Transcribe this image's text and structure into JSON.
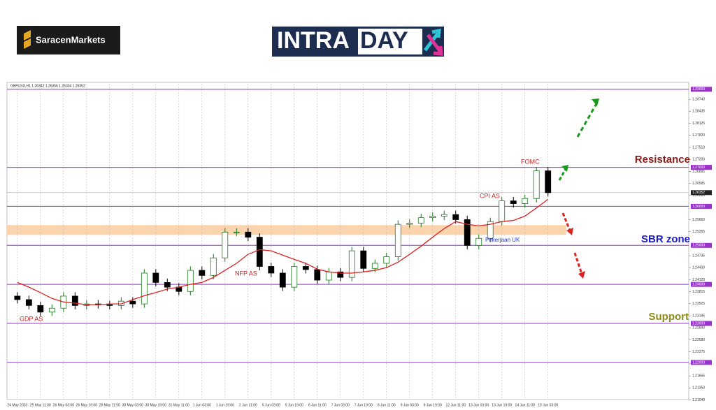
{
  "logo": "SaracenMarkets",
  "banner": {
    "intra": "INTRA",
    "day": "DAY"
  },
  "chart_data": {
    "type": "candlestick",
    "symbol_info": "GBPUSD,H1  1.26342 1.26356 1.26334 1.26352",
    "up_color": "#1a7a1a",
    "down_color": "#000000",
    "open": [
      1.237,
      1.2361,
      1.2346,
      1.2329,
      1.2339,
      1.237,
      1.2346,
      1.235,
      1.2348,
      1.2346,
      1.2357,
      1.235,
      1.2429,
      1.2405,
      1.2393,
      1.2382,
      1.2436,
      1.2423,
      1.2468,
      1.2534,
      1.2534,
      1.2521,
      1.2446,
      1.2429,
      1.2393,
      1.2446,
      1.2438,
      1.2411,
      1.2432,
      1.2418,
      1.2486,
      1.2441,
      1.2454,
      1.2471,
      1.2554,
      1.2557,
      1.2571,
      1.2575,
      1.2579,
      1.2566,
      1.25,
      1.2518,
      1.2561,
      1.2614,
      1.2607,
      1.262,
      1.2691
    ],
    "high": [
      1.238,
      1.2371,
      1.2356,
      1.2349,
      1.238,
      1.238,
      1.236,
      1.236,
      1.2358,
      1.2367,
      1.2367,
      1.2439,
      1.2439,
      1.2415,
      1.2403,
      1.2446,
      1.2446,
      1.2478,
      1.2544,
      1.2544,
      1.2544,
      1.2531,
      1.2456,
      1.2439,
      1.2456,
      1.2456,
      1.2448,
      1.2442,
      1.2442,
      1.2496,
      1.2496,
      1.2464,
      1.2481,
      1.2564,
      1.2567,
      1.2581,
      1.2585,
      1.2589,
      1.2589,
      1.2576,
      1.2528,
      1.2571,
      1.2624,
      1.2624,
      1.263,
      1.2701,
      1.2701
    ],
    "low": [
      1.2351,
      1.2336,
      1.2319,
      1.2319,
      1.2329,
      1.2336,
      1.2336,
      1.2338,
      1.2336,
      1.2336,
      1.234,
      1.234,
      1.2395,
      1.2383,
      1.2372,
      1.2372,
      1.2413,
      1.2413,
      1.2458,
      1.2524,
      1.2511,
      1.2436,
      1.2419,
      1.2383,
      1.2383,
      1.2428,
      1.2401,
      1.2401,
      1.2408,
      1.2408,
      1.2431,
      1.2431,
      1.2444,
      1.2461,
      1.2544,
      1.2547,
      1.2561,
      1.2565,
      1.2556,
      1.249,
      1.249,
      1.2508,
      1.2551,
      1.2597,
      1.2597,
      1.261,
      1.2625
    ],
    "close": [
      1.2361,
      1.2346,
      1.2329,
      1.2339,
      1.237,
      1.2346,
      1.235,
      1.2348,
      1.2346,
      1.2357,
      1.235,
      1.2429,
      1.2405,
      1.2393,
      1.2382,
      1.2436,
      1.2423,
      1.2468,
      1.2534,
      1.2534,
      1.2521,
      1.2446,
      1.2429,
      1.2393,
      1.2446,
      1.2438,
      1.2411,
      1.2432,
      1.2418,
      1.2486,
      1.2441,
      1.2454,
      1.2471,
      1.2554,
      1.2557,
      1.2571,
      1.2575,
      1.2579,
      1.2566,
      1.25,
      1.2518,
      1.2561,
      1.2614,
      1.2607,
      1.262,
      1.2691,
      1.2635
    ],
    "moving_average": {
      "color": "#dd2222",
      "values": [
        1.2405,
        1.2393,
        1.2379,
        1.2364,
        1.2355,
        1.2352,
        1.2348,
        1.2348,
        1.235,
        1.235,
        1.2361,
        1.2371,
        1.2379,
        1.2388,
        1.2393,
        1.24,
        1.2405,
        1.2418,
        1.2436,
        1.2454,
        1.2477,
        1.2489,
        1.2486,
        1.2475,
        1.2464,
        1.2454,
        1.2439,
        1.2432,
        1.2429,
        1.2429,
        1.2432,
        1.2436,
        1.2443,
        1.2457,
        1.2477,
        1.2498,
        1.2521,
        1.2543,
        1.2561,
        1.2554,
        1.255,
        1.2554,
        1.2561,
        1.2564,
        1.2575,
        1.2596,
        1.2618
      ]
    },
    "xlim": [
      -0.9,
      58.2
    ],
    "xticks": [
      {
        "value": 0,
        "label": "24 May 2023"
      },
      {
        "value": 2,
        "label": "25 May 11:00"
      },
      {
        "value": 4,
        "label": "26 May 03:00"
      },
      {
        "value": 6,
        "label": "26 May 19:00"
      },
      {
        "value": 8,
        "label": "29 May 11:00"
      },
      {
        "value": 10,
        "label": "30 May 03:00"
      },
      {
        "value": 12,
        "label": "30 May 19:00"
      },
      {
        "value": 14,
        "label": "31 May 11:00"
      },
      {
        "value": 16,
        "label": "1 Jun 03:00"
      },
      {
        "value": 18,
        "label": "1 Jun 19:00"
      },
      {
        "value": 20,
        "label": "2 Jun 11:00"
      },
      {
        "value": 22,
        "label": "5 Jun 03:00"
      },
      {
        "value": 24,
        "label": "5 Jun 19:00"
      },
      {
        "value": 26,
        "label": "6 Jun 11:00"
      },
      {
        "value": 28,
        "label": "7 Jun 03:00"
      },
      {
        "value": 30,
        "label": "7 Jun 19:00"
      },
      {
        "value": 32,
        "label": "8 Jun 11:00"
      },
      {
        "value": 34,
        "label": "9 Jun 03:00"
      },
      {
        "value": 36,
        "label": "9 Jun 19:00"
      },
      {
        "value": 38,
        "label": "12 Jun 11:00"
      },
      {
        "value": 40,
        "label": "13 Jun 03:00"
      },
      {
        "value": 42,
        "label": "13 Jun 19:00"
      },
      {
        "value": 44,
        "label": "14 Jun 11:00"
      },
      {
        "value": 46,
        "label": "15 Jun 03:00"
      }
    ],
    "ylim": [
      1.2105,
      1.2914
    ],
    "yticks": [
      {
        "value": 1.2874,
        "label": "1.28740"
      },
      {
        "value": 1.28435,
        "label": "1.28435"
      },
      {
        "value": 1.28125,
        "label": "1.28125"
      },
      {
        "value": 1.2782,
        "label": "1.27820"
      },
      {
        "value": 1.2751,
        "label": "1.27510"
      },
      {
        "value": 1.272,
        "label": "1.27200"
      },
      {
        "value": 1.26895,
        "label": "1.26895"
      },
      {
        "value": 1.26585,
        "label": "1.26585"
      },
      {
        "value": 1.2628,
        "label": "1.26280"
      },
      {
        "value": 1.2566,
        "label": "1.25660"
      },
      {
        "value": 1.25355,
        "label": "1.25355"
      },
      {
        "value": 1.24735,
        "label": "1.24735"
      },
      {
        "value": 1.2443,
        "label": "1.24430"
      },
      {
        "value": 1.2412,
        "label": "1.24120"
      },
      {
        "value": 1.23815,
        "label": "1.23815"
      },
      {
        "value": 1.23505,
        "label": "1.23505"
      },
      {
        "value": 1.23195,
        "label": "1.23195"
      },
      {
        "value": 1.2289,
        "label": "1.22890"
      },
      {
        "value": 1.2258,
        "label": "1.22580"
      },
      {
        "value": 1.22275,
        "label": "1.22275"
      },
      {
        "value": 1.21965,
        "label": "1.21965"
      },
      {
        "value": 1.21655,
        "label": "1.21655"
      },
      {
        "value": 1.2135,
        "label": "1.21350"
      },
      {
        "value": 1.2104,
        "label": "1.21040"
      }
    ],
    "levels": [
      {
        "value": 1.29,
        "label": "1.29000"
      },
      {
        "value": 1.27,
        "label": "1.27000"
      },
      {
        "value": 1.26,
        "label": "1.26000"
      },
      {
        "value": 1.25,
        "label": "1.25000"
      },
      {
        "value": 1.24,
        "label": "1.24000"
      },
      {
        "value": 1.23,
        "label": "1.23000"
      },
      {
        "value": 1.22,
        "label": "1.22000"
      }
    ],
    "level_color": "#9933cc",
    "current_price": 1.26352,
    "sbr_zone": [
      1.2527,
      1.2552
    ],
    "zone_color": "#fbd3ad",
    "annotations": [
      "GDP AS",
      "NFP AS",
      "CPI AS",
      "FOMC",
      "Pekerjaan UK"
    ],
    "zone_labels": [
      "Resistance",
      "SBR zone",
      "Support"
    ]
  }
}
